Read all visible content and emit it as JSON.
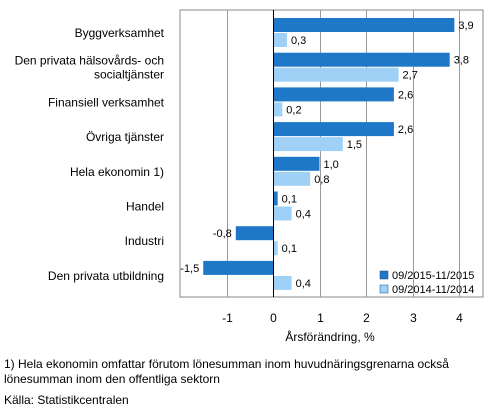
{
  "chart_data": {
    "type": "bar",
    "orientation": "horizontal",
    "categories": [
      [
        "Byggverksamhet"
      ],
      [
        "Den privata hälsovårds- och",
        "socialtjänster"
      ],
      [
        "Finansiell verksamhet"
      ],
      [
        "Övriga tjänster"
      ],
      [
        "Hela ekonomin 1)"
      ],
      [
        "Handel"
      ],
      [
        "Industri"
      ],
      [
        "Den privata utbildning"
      ]
    ],
    "series": [
      {
        "name": "09/2015-11/2015",
        "color": "#1f77c8",
        "values": [
          3.9,
          3.8,
          2.6,
          2.6,
          1.0,
          0.1,
          -0.8,
          -1.5
        ],
        "labels": [
          "3,9",
          "3,8",
          "2,6",
          "2,6",
          "1,0",
          "0,1",
          "-0,8",
          "-1,5"
        ]
      },
      {
        "name": "09/2014-11/2014",
        "color": "#9fd0f5",
        "values": [
          0.3,
          2.7,
          0.2,
          1.5,
          0.8,
          0.4,
          0.1,
          0.4
        ],
        "labels": [
          "0,3",
          "2,7",
          "0,2",
          "1,5",
          "0,8",
          "0,4",
          "0,1",
          "0,4"
        ]
      }
    ],
    "xlabel": "Årsförändring, %",
    "xlim": [
      -2,
      4.3
    ],
    "xticks": [
      -1,
      0,
      1,
      2,
      3,
      4
    ],
    "xtick_labels": [
      "-1",
      "0",
      "1",
      "2",
      "3",
      "4"
    ],
    "grid": true,
    "legend": "bottom-right"
  },
  "footnote": "1) Hela ekonomin omfattar förutom lönesumman inom huvudnäringsgrenarna också lönesumman inom den offentliga sektorn",
  "source": "Källa: Statistikcentralen"
}
